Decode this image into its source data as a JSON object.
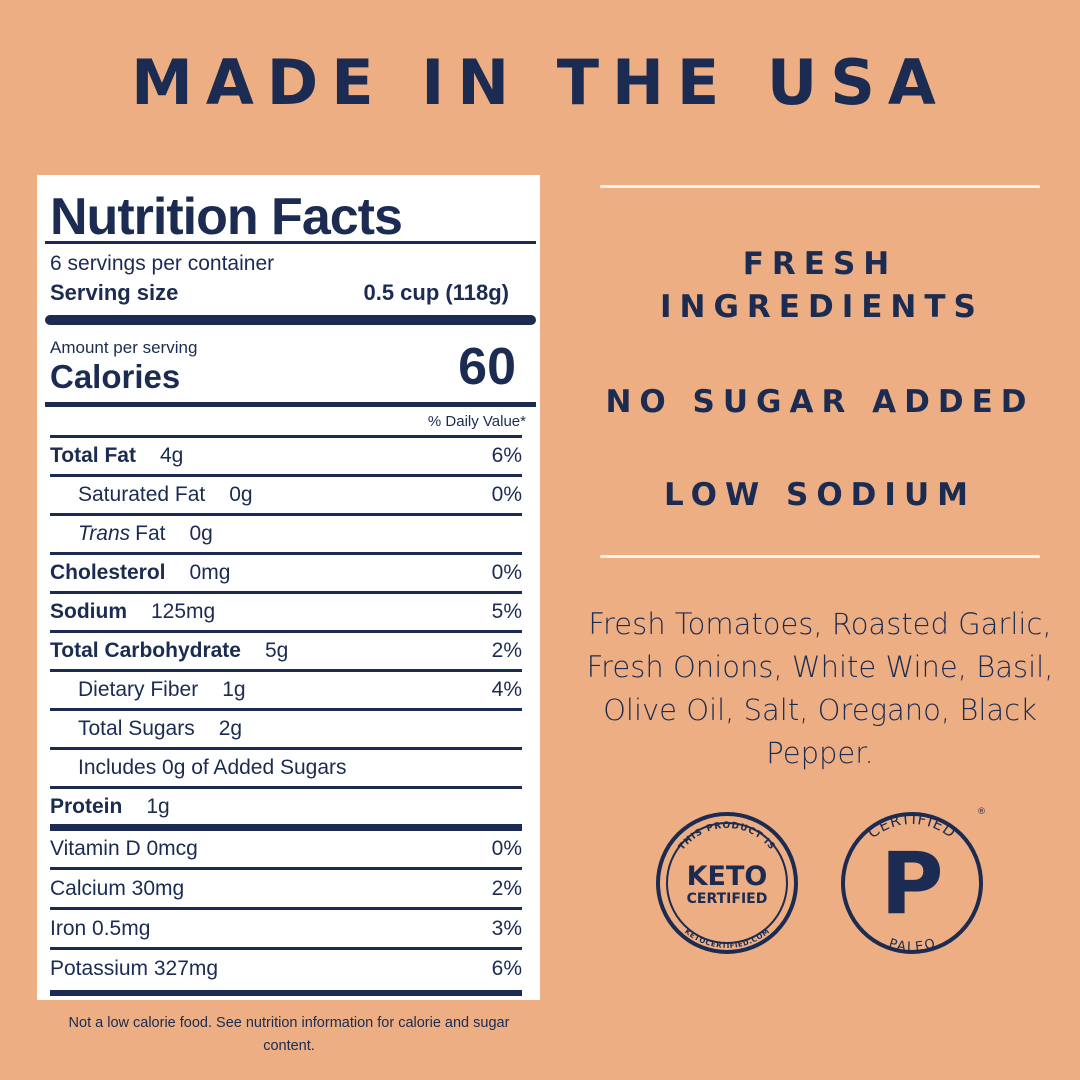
{
  "header": {
    "title": "MADE IN THE USA"
  },
  "nutrition": {
    "title": "Nutrition Facts",
    "servings": "6 servings per container",
    "serving_size_label": "Serving size",
    "serving_size": "0.5 cup (118g)",
    "amount_label": "Amount per serving",
    "calories_label": "Calories",
    "calories": "60",
    "dv_header": "% Daily Value*",
    "rows": [
      {
        "label": "Total Fat",
        "amount": "4g",
        "dv": "6%"
      },
      {
        "label": "Saturated Fat",
        "amount": "0g",
        "dv": "0%"
      },
      {
        "label_em": "Trans",
        "label": "Fat",
        "amount": "0g"
      },
      {
        "label": "Cholesterol",
        "amount": "0mg",
        "dv": "0%"
      },
      {
        "label": "Sodium",
        "amount": "125mg",
        "dv": "5%"
      },
      {
        "label": "Total Carbohydrate",
        "amount": "5g",
        "dv": "2%"
      },
      {
        "label": "Dietary Fiber",
        "amount": "1g",
        "dv": "4%"
      },
      {
        "label": "Total Sugars",
        "amount": "2g"
      },
      {
        "label": "Includes 0g of Added Sugars"
      },
      {
        "label": "Protein",
        "amount": "1g"
      }
    ],
    "vitamins": [
      {
        "label": "Vitamin D 0mcg",
        "dv": "0%"
      },
      {
        "label": "Calcium 30mg",
        "dv": "2%"
      },
      {
        "label": "Iron 0.5mg",
        "dv": "3%"
      },
      {
        "label": "Potassium 327mg",
        "dv": "6%"
      }
    ],
    "footnote": "Not a low calorie food. See nutrition information for calorie and sugar content."
  },
  "claims": [
    "FRESH INGREDIENTS",
    "NO SUGAR ADDED",
    "LOW SODIUM"
  ],
  "ingredients": "Fresh Tomatoes, Roasted Garlic, Fresh Onions, White Wine, Basil, Olive Oil, Salt, Oregano, Black Pepper.",
  "badges": {
    "keto": {
      "top": "THIS PRODUCT IS",
      "line1": "KETO",
      "line2": "CERTIFIED",
      "bottom": "KETOCERTIFIED.COM"
    },
    "paleo": {
      "top": "CERTIFIED",
      "letter": "P",
      "bottom": "PALEO",
      "mark": "®"
    }
  }
}
